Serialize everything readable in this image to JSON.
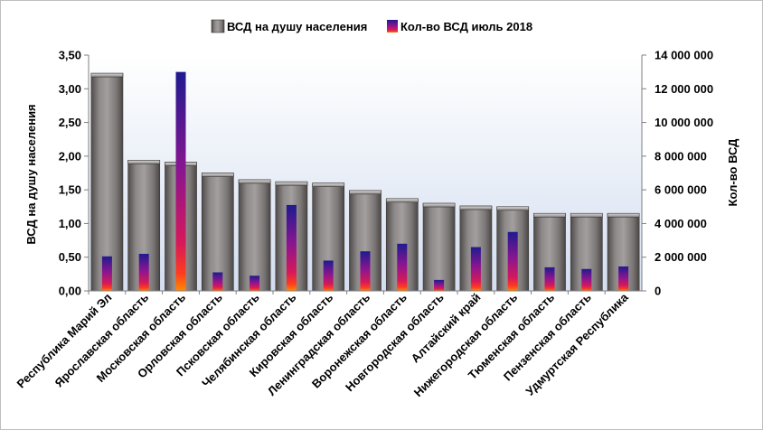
{
  "chart_data": {
    "type": "bar",
    "categories": [
      "Республика Марий Эл",
      "Ярославская область",
      "Московская область",
      "Орловская область",
      "Псковская область",
      "Челябинская область",
      "Кировская область",
      "Ленинградская область",
      "Воронежская область",
      "Новгородская область",
      "Алтайский край",
      "Нижегородская область",
      "Тюменская область",
      "Пензенская область",
      "Удмуртская Республика"
    ],
    "series": [
      {
        "name": "ВСД на душу населения",
        "axis": "left",
        "color": "#7f7b7a",
        "values": [
          3.23,
          1.94,
          1.91,
          1.75,
          1.65,
          1.62,
          1.6,
          1.49,
          1.37,
          1.3,
          1.26,
          1.25,
          1.15,
          1.15,
          1.15
        ]
      },
      {
        "name": "Кол-во ВСД июль  2018",
        "axis": "right",
        "color": "#6a1f8c",
        "values": [
          2050000,
          2200000,
          13000000,
          1100000,
          900000,
          5100000,
          1800000,
          2350000,
          2800000,
          650000,
          2600000,
          3500000,
          1400000,
          1300000,
          1450000
        ]
      }
    ],
    "y_left": {
      "label": "ВСД на душу населения",
      "range": [
        0,
        3.5
      ],
      "ticks": [
        "0,00",
        "0,50",
        "1,00",
        "1,50",
        "2,00",
        "2,50",
        "3,00",
        "3,50"
      ]
    },
    "y_right": {
      "label": "Кол-во ВСД",
      "range": [
        0,
        14000000
      ],
      "ticks": [
        "0",
        "2 000 000",
        "4 000 000",
        "6 000 000",
        "8 000 000",
        "10 000 000",
        "12 000 000",
        "14 000 000"
      ]
    },
    "legend_position": "top",
    "grid": false,
    "plot_background": "#dfe6f1"
  }
}
